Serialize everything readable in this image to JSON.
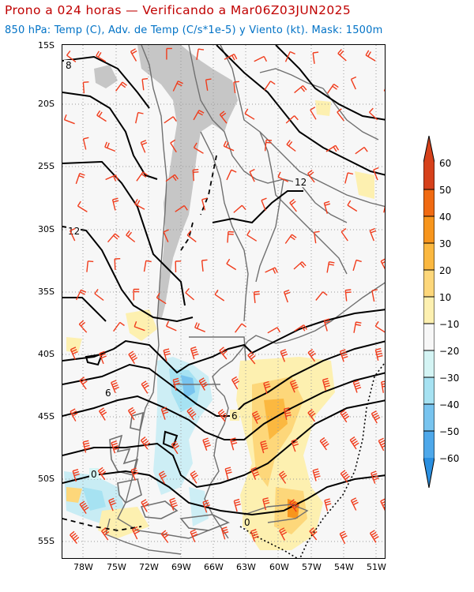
{
  "header": {
    "title": "Prono a 024 horas — Verificando a Mar06Z03JUN2025",
    "subtitle": "850 hPa: Temp (C), Adv. de Temp (C/s*1e-5) y Viento (kt). Mask: 1500m"
  },
  "axes": {
    "lat_labels": [
      "15S",
      "20S",
      "25S",
      "30S",
      "35S",
      "40S",
      "45S",
      "50S",
      "55S"
    ],
    "lon_labels": [
      "78W",
      "75W",
      "72W",
      "69W",
      "66W",
      "63W",
      "60W",
      "57W",
      "54W",
      "51W"
    ]
  },
  "contours": {
    "labels": [
      "8",
      "12",
      "12",
      "6",
      "6",
      "0",
      "0"
    ]
  },
  "colorbar": {
    "labels": [
      "60",
      "50",
      "40",
      "30",
      "20",
      "10",
      "−10",
      "−20",
      "−30",
      "−40",
      "−50",
      "−60"
    ],
    "colors": [
      "#d6411b",
      "#f06a12",
      "#f7951c",
      "#fbb840",
      "#fdd77a",
      "#fdf0b0",
      "#f7f7f7",
      "#d4f4f4",
      "#a6e2f2",
      "#78c4ef",
      "#4ea8ea",
      "#2a8fe0"
    ]
  },
  "colors": {
    "mask": "#c6c6c6",
    "wind_barbs": "#f03c1c",
    "contours": "#000000",
    "borders": "#707070"
  }
}
